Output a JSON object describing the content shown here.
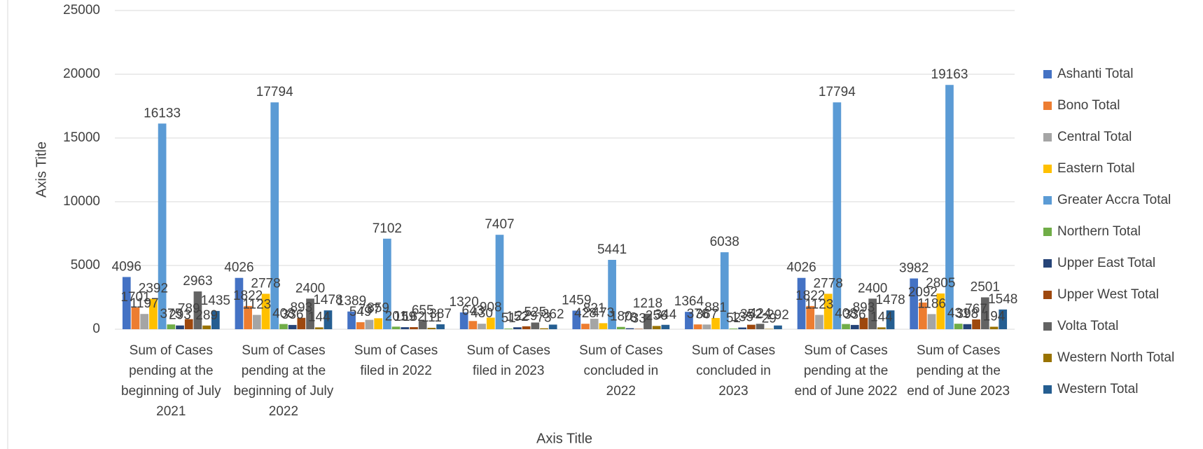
{
  "chart_data": {
    "type": "bar",
    "x_label": "Axis Title",
    "y_label": "Axis Title",
    "categories": [
      "Sum of Cases pending at the beginning of July 2021",
      "Sum of Cases pending at the beginning of July 2022",
      "Sum of Cases filed in 2022",
      "Sum of Cases filed in 2023",
      "Sum of Cases concluded in 2022",
      "Sum of Cases concluded in 2023",
      "Sum of Cases pending at the end of June 2022",
      "Sum of Cases pending at the end of June 2023"
    ],
    "series": [
      {
        "name": "Ashanti Total",
        "color": "#4472c4",
        "values": [
          4096,
          4026,
          1389,
          1320,
          1459,
          1364,
          4026,
          3982
        ]
      },
      {
        "name": "Bono Total",
        "color": "#ed7d31",
        "values": [
          1701,
          1822,
          549,
          643,
          428,
          376,
          1822,
          2092
        ]
      },
      {
        "name": "Central  Total",
        "color": "#a5a5a5",
        "values": [
          1197,
          1123,
          737,
          430,
          821,
          367,
          1123,
          1186
        ]
      },
      {
        "name": "Eastern Total",
        "color": "#ffc000",
        "values": [
          2392,
          2778,
          859,
          908,
          473,
          881,
          2778,
          2805
        ]
      },
      {
        "name": "Greater Accra Total",
        "color": "#5b9bd5",
        "values": [
          16133,
          17794,
          7102,
          7407,
          5441,
          6038,
          17794,
          19163
        ]
      },
      {
        "name": "Northern Total",
        "color": "#70ad47",
        "values": [
          375,
          408,
          201,
          51,
          180,
          52,
          408,
          431
        ]
      },
      {
        "name": "Upper East Total",
        "color": "#264478",
        "values": [
          293,
          336,
          159,
          152,
          78,
          135,
          336,
          398
        ]
      },
      {
        "name": "Upper West Total",
        "color": "#9e480e",
        "values": [
          789,
          893,
          162,
          229,
          33,
          352,
          893,
          767
        ]
      },
      {
        "name": "Volta Total",
        "color": "#636363",
        "values": [
          2963,
          2400,
          655,
          525,
          1218,
          424,
          2400,
          2501
        ]
      },
      {
        "name": "Western North Total",
        "color": "#997300",
        "values": [
          289,
          144,
          111,
          73,
          256,
          29,
          144,
          194
        ]
      },
      {
        "name": "Western Total",
        "color": "#255e91",
        "values": [
          1435,
          1478,
          387,
          362,
          344,
          292,
          1478,
          1548
        ]
      }
    ],
    "ylim": [
      0,
      25000
    ],
    "yticks": [
      0,
      5000,
      10000,
      15000,
      20000,
      25000
    ],
    "grid": true,
    "legend": "right"
  }
}
